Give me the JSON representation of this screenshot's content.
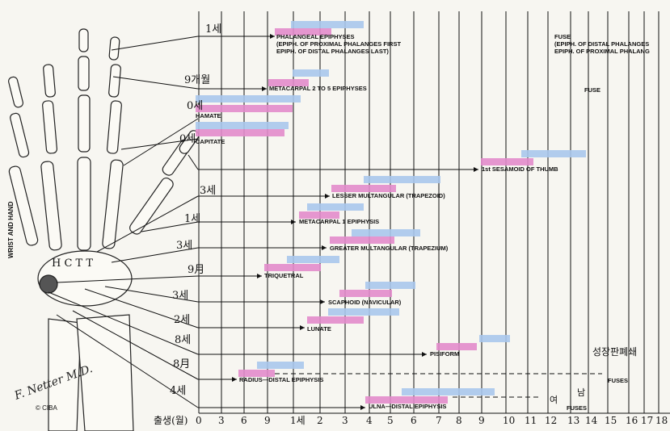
{
  "side_title": "WRIST AND HAND",
  "axis": {
    "prefix": "출생(월)",
    "ticks": [
      "0",
      "3",
      "6",
      "9",
      "1세",
      "2",
      "3",
      "4",
      "5",
      "6",
      "7",
      "8",
      "9",
      "10",
      "11",
      "12",
      "13",
      "14",
      "15",
      "16",
      "17",
      "18"
    ]
  },
  "rows": [
    {
      "label": "PHALANGEAL EPIPHYSES",
      "sub": [
        "(EPIPH. OF PROXIMAL PHALANGES FIRST",
        "EPIPH. OF DISTAL PHALANGES LAST)"
      ],
      "note": "1세",
      "end_label": "FUSE",
      "end_sub": [
        "(EPIPH. OF DISTAL PHALANGES",
        "EPIPH. OF PROXIMAL PHALANG"
      ]
    },
    {
      "label": "METACARPAL 2 TO 5 EPIPHYSES",
      "note": "9개월",
      "end_label": "FUSE"
    },
    {
      "label": "HAMATE",
      "note": "0세"
    },
    {
      "label": "CAPITATE",
      "note": "0세"
    },
    {
      "label": "1st SESAMOID OF THUMB"
    },
    {
      "label": "LESSER MULTANGULAR (TRAPEZOID)",
      "note": "3세"
    },
    {
      "label": "METACARPAL 1 EPIPHYSIS",
      "note": "1세"
    },
    {
      "label": "GREATER MULTANGULAR (TRAPEZIUM)",
      "note": "3세"
    },
    {
      "label": "TRIQUETRAL",
      "note": "9月"
    },
    {
      "label": "SCAPHOID (NAVICULAR)",
      "note": "3세"
    },
    {
      "label": "LUNATE",
      "note": "2세"
    },
    {
      "label": "PISIFORM",
      "note": "8세"
    },
    {
      "label": "RADIUS—DISTAL EPIPHYSIS",
      "note": "8月",
      "end_label": "FUSES"
    },
    {
      "label": "ULNA—DISTAL EPIPHYSIS",
      "note": "4세",
      "end_label": "FUSES"
    }
  ],
  "annotations": {
    "growth_plate": "성장판폐쇄",
    "male": "남",
    "female": "여"
  },
  "carpal_letters": "H C T T",
  "signature": "F. Netter M.D.",
  "copyright": "© CIBA",
  "colors": {
    "male": "#a8c8ec",
    "female": "#e28ccb",
    "line": "#111111",
    "paper": "#f7f6f1"
  }
}
